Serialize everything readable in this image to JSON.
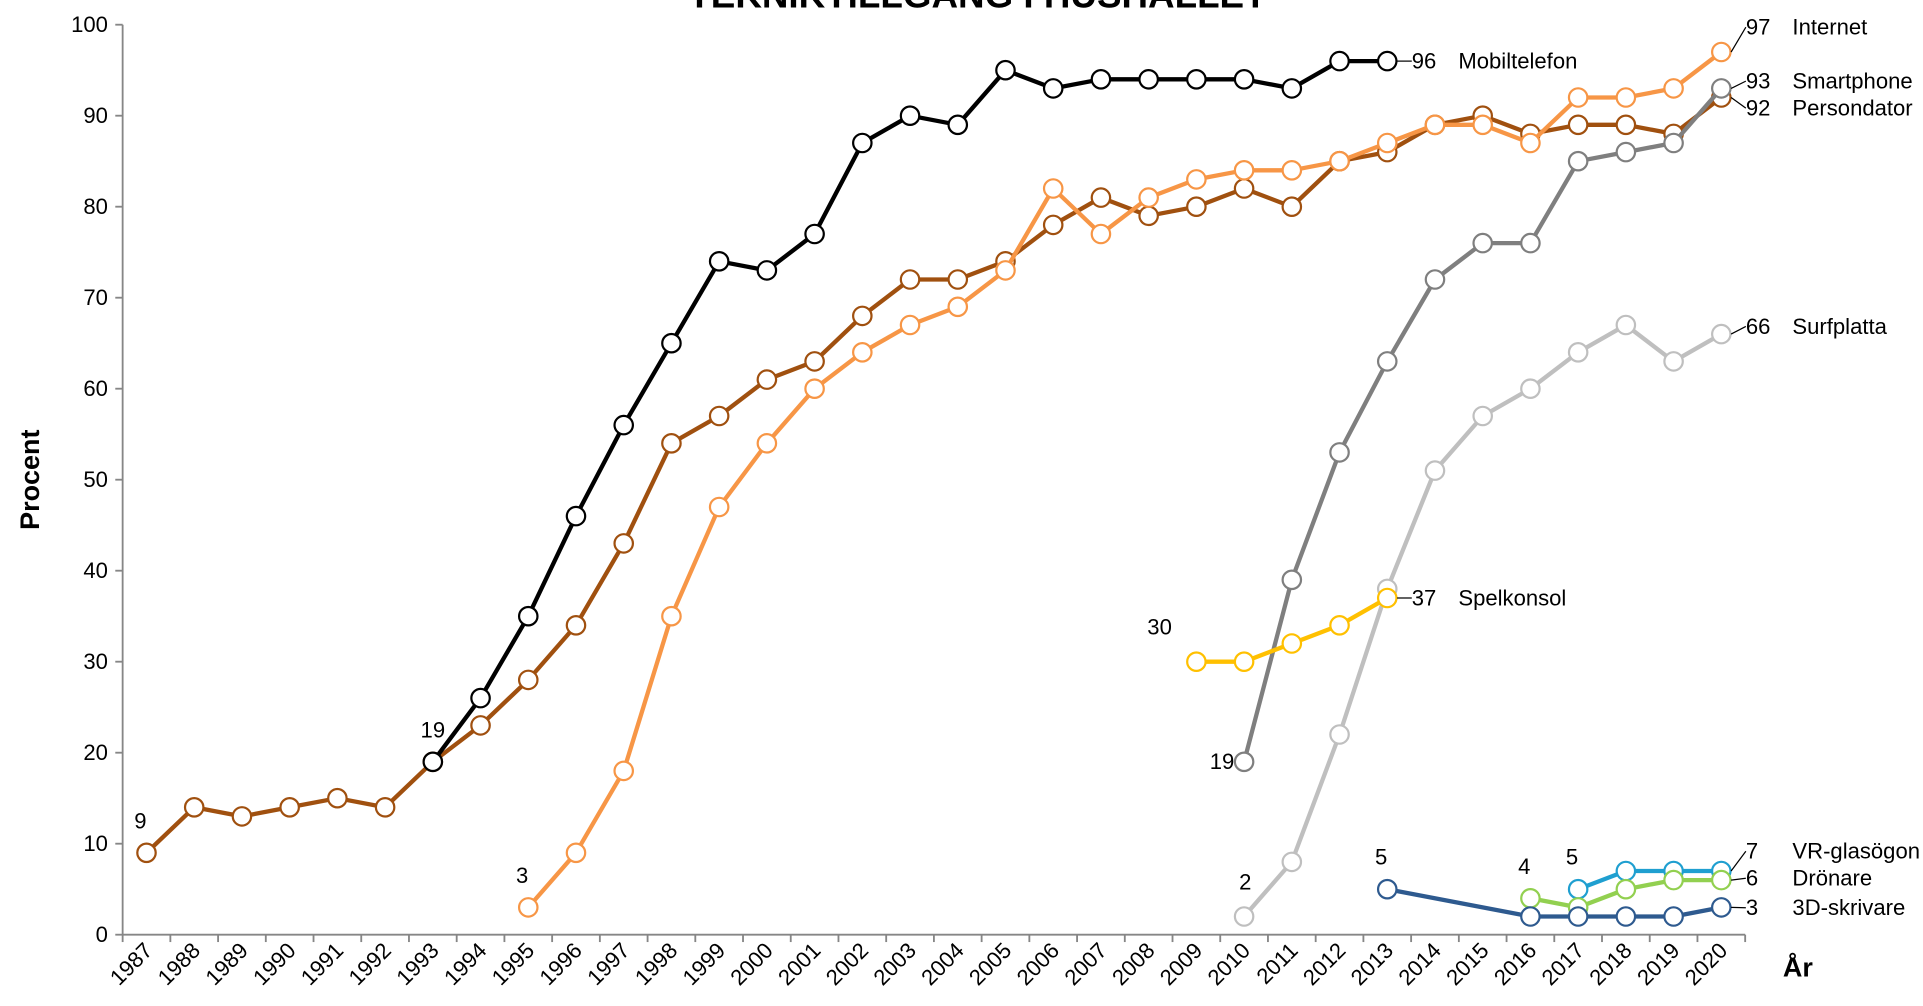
{
  "chart_data": {
    "type": "line",
    "title": "TEKNIKTILLGÅNG I HUSHÅLLET",
    "y_label": "Procent",
    "x_label": "År",
    "categories": [
      "1987",
      "1988",
      "1989",
      "1990",
      "1991",
      "1992",
      "1993",
      "1994",
      "1995",
      "1996",
      "1997",
      "1998",
      "1999",
      "2000",
      "2001",
      "2002",
      "2003",
      "2004",
      "2005",
      "2006",
      "2007",
      "2008",
      "2009",
      "2010",
      "2011",
      "2012",
      "2013",
      "2014",
      "2015",
      "2016",
      "2017",
      "2018",
      "2019",
      "2020"
    ],
    "ylim": [
      0,
      100
    ],
    "yticks": [
      0,
      10,
      20,
      30,
      40,
      50,
      60,
      70,
      80,
      90,
      100
    ],
    "grid": false,
    "series": [
      {
        "name": "Persondator",
        "color": "#a0500f",
        "values": [
          9,
          14,
          13,
          14,
          15,
          14,
          19,
          23,
          28,
          34,
          43,
          54,
          57,
          61,
          63,
          68,
          72,
          72,
          74,
          78,
          81,
          79,
          80,
          82,
          80,
          85,
          86,
          89,
          90,
          88,
          89,
          89,
          88,
          92
        ]
      },
      {
        "name": "Mobiltelefon",
        "color": "#000000",
        "values": [
          null,
          null,
          null,
          null,
          null,
          null,
          19,
          26,
          35,
          46,
          56,
          65,
          74,
          73,
          77,
          87,
          90,
          89,
          95,
          93,
          94,
          94,
          94,
          94,
          93,
          96,
          96,
          null,
          null,
          null,
          null,
          null,
          null,
          null
        ]
      },
      {
        "name": "Internet",
        "color": "#f79646",
        "values": [
          null,
          null,
          null,
          null,
          null,
          null,
          null,
          null,
          3,
          9,
          18,
          35,
          47,
          54,
          60,
          64,
          67,
          69,
          73,
          82,
          77,
          81,
          83,
          84,
          84,
          85,
          87,
          89,
          89,
          87,
          92,
          92,
          93,
          97
        ]
      },
      {
        "name": "Smartphone",
        "color": "#7f7f7f",
        "values": [
          null,
          null,
          null,
          null,
          null,
          null,
          null,
          null,
          null,
          null,
          null,
          null,
          null,
          null,
          null,
          null,
          null,
          null,
          null,
          null,
          null,
          null,
          null,
          19,
          39,
          53,
          63,
          72,
          76,
          76,
          85,
          86,
          87,
          93
        ]
      },
      {
        "name": "Surfplatta",
        "color": "#bfbfbf",
        "values": [
          null,
          null,
          null,
          null,
          null,
          null,
          null,
          null,
          null,
          null,
          null,
          null,
          null,
          null,
          null,
          null,
          null,
          null,
          null,
          null,
          null,
          null,
          null,
          2,
          8,
          22,
          38,
          51,
          57,
          60,
          64,
          67,
          63,
          66
        ]
      },
      {
        "name": "Spelkonsol",
        "color": "#ffc000",
        "values": [
          null,
          null,
          null,
          null,
          null,
          null,
          null,
          null,
          null,
          null,
          null,
          null,
          null,
          null,
          null,
          null,
          null,
          null,
          null,
          null,
          null,
          null,
          30,
          30,
          32,
          34,
          37,
          null,
          null,
          null,
          null,
          null,
          null,
          null
        ]
      },
      {
        "name": "VR-glasögon",
        "color": "#1f9fd0",
        "values": [
          null,
          null,
          null,
          null,
          null,
          null,
          null,
          null,
          null,
          null,
          null,
          null,
          null,
          null,
          null,
          null,
          null,
          null,
          null,
          null,
          null,
          null,
          null,
          null,
          null,
          null,
          null,
          null,
          null,
          null,
          5,
          7,
          7,
          7
        ]
      },
      {
        "name": "Drönare",
        "color": "#92d050",
        "values": [
          null,
          null,
          null,
          null,
          null,
          null,
          null,
          null,
          null,
          null,
          null,
          null,
          null,
          null,
          null,
          null,
          null,
          null,
          null,
          null,
          null,
          null,
          null,
          null,
          null,
          null,
          null,
          null,
          null,
          4,
          3,
          5,
          6,
          6
        ]
      },
      {
        "name": "3D-skrivare",
        "color": "#2e5a8f",
        "span_gaps": true,
        "values": [
          null,
          null,
          null,
          null,
          null,
          null,
          null,
          null,
          null,
          null,
          null,
          null,
          null,
          null,
          null,
          null,
          null,
          null,
          null,
          null,
          null,
          null,
          null,
          null,
          null,
          null,
          5,
          null,
          null,
          2,
          2,
          2,
          2,
          3
        ]
      }
    ]
  }
}
